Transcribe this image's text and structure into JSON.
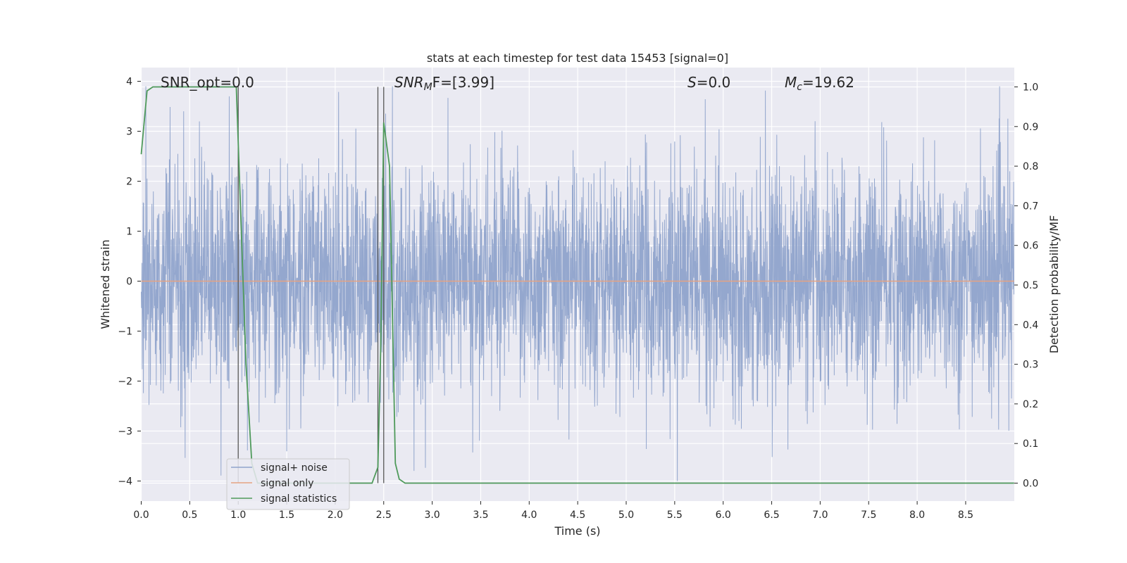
{
  "chart_data": {
    "type": "line",
    "title": "stats at each timestep for test data 15453 [signal=0]",
    "xlabel": "Time (s)",
    "ylabel": "Whitened strain",
    "y2label": "Detection probability/MF",
    "xlim": [
      0,
      9.0
    ],
    "ylim": [
      -4.4,
      4.3
    ],
    "y2lim": [
      -0.05,
      1.05
    ],
    "xticks": [
      "0.0",
      "0.5",
      "1.0",
      "1.5",
      "2.0",
      "2.5",
      "3.0",
      "3.5",
      "4.0",
      "4.5",
      "5.0",
      "5.5",
      "6.0",
      "6.5",
      "7.0",
      "7.5",
      "8.0",
      "8.5"
    ],
    "yticks": [
      "4",
      "3",
      "2",
      "1",
      "0",
      "−1",
      "−2",
      "−3",
      "−4"
    ],
    "y2ticks": [
      "1.0",
      "0.9",
      "0.8",
      "0.7",
      "0.6",
      "0.5",
      "0.4",
      "0.3",
      "0.2",
      "0.1",
      "0.0"
    ],
    "grid": true,
    "legend_position": "lower-left",
    "annotations": {
      "snr_opt": "SNR_opt=0.0",
      "snr_mf_label": "SNR",
      "snr_mf_sub": "M",
      "snr_mf_rest": "F=[3.99]",
      "s_label": "S",
      "s_rest": "=0.0",
      "mc_label": "M",
      "mc_sub": "c",
      "mc_rest": "=19.62"
    },
    "vertical_lines_x": [
      1.0,
      2.44,
      2.5
    ],
    "series": [
      {
        "name": "signal+ noise",
        "color": "#8fa3cb",
        "style": "dense noise, amplitude roughly ±2 with spikes to ±3.9",
        "y_extremes": [
          -4.0,
          3.9
        ]
      },
      {
        "name": "signal only",
        "color": "#e6a382",
        "x": [
          0,
          9.0
        ],
        "y": [
          0,
          0
        ]
      },
      {
        "name": "signal statistics",
        "color": "#4f9a5b",
        "axis": "right",
        "x": [
          0,
          0.06,
          0.12,
          0.5,
          0.9,
          0.98,
          1.02,
          1.08,
          1.14,
          1.2,
          1.5,
          2.0,
          2.38,
          2.44,
          2.47,
          2.5,
          2.56,
          2.62,
          2.66,
          2.72,
          3.0,
          5.2,
          9.0
        ],
        "y": [
          0.83,
          0.99,
          1.0,
          1.0,
          1.0,
          1.0,
          0.72,
          0.3,
          0.05,
          0.0,
          0.0,
          0.0,
          0.0,
          0.04,
          0.35,
          0.91,
          0.8,
          0.05,
          0.01,
          0.0,
          0.0,
          0.0,
          0.0
        ]
      }
    ]
  }
}
